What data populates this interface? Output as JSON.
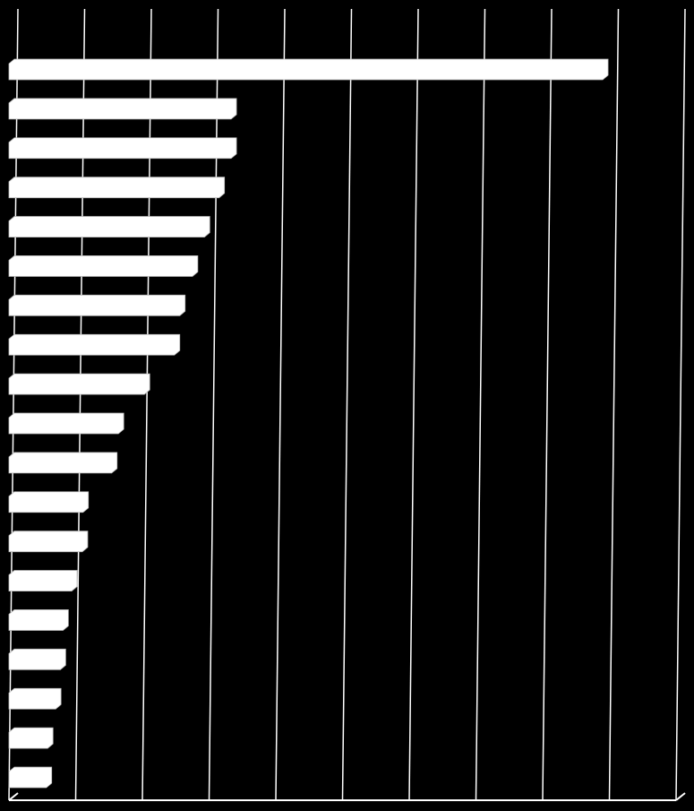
{
  "chart_data": {
    "type": "bar",
    "orientation": "horizontal",
    "values": [
      8.9,
      3.33,
      3.33,
      3.15,
      2.93,
      2.75,
      2.56,
      2.48,
      2.03,
      1.64,
      1.54,
      1.11,
      1.1,
      0.94,
      0.81,
      0.77,
      0.7,
      0.58,
      0.56
    ],
    "color": "#ffffff",
    "background": "#000000",
    "xlim": [
      0,
      10
    ],
    "xticks": [
      0,
      1,
      2,
      3,
      4,
      5,
      6,
      7,
      8,
      9,
      10
    ],
    "grid": true
  }
}
